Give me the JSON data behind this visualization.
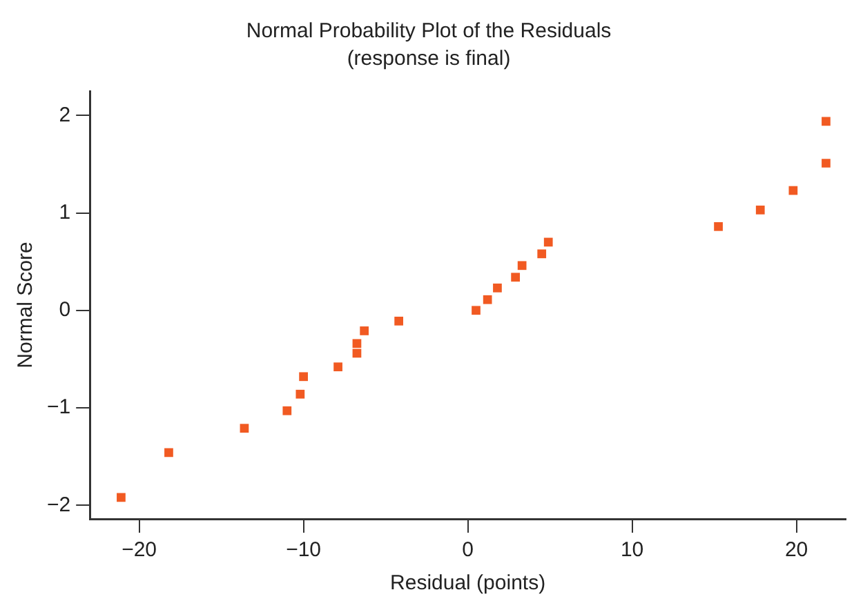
{
  "chart_data": {
    "type": "scatter",
    "title": "Normal Probability Plot of the Residuals",
    "subtitle": "(response is final)",
    "xlabel": "Residual (points)",
    "ylabel": "Normal Score",
    "x": [
      -21.1,
      -18.2,
      -13.6,
      -11.0,
      -10.2,
      -10.0,
      -7.9,
      -6.75,
      -6.75,
      -6.3,
      -4.2,
      0.5,
      1.2,
      1.8,
      2.9,
      3.3,
      4.5,
      4.9,
      15.25,
      17.8,
      19.8,
      21.8,
      21.8
    ],
    "series": [
      {
        "color": "#f15a22",
        "values": [
          -1.92,
          -1.46,
          -1.21,
          -1.03,
          -0.86,
          -0.68,
          -0.58,
          -0.44,
          -0.34,
          -0.21,
          -0.11,
          0.0,
          0.11,
          0.23,
          0.34,
          0.46,
          0.58,
          0.7,
          0.86,
          1.03,
          1.23,
          1.51,
          1.94
        ]
      }
    ],
    "xlim": [
      -23,
      23
    ],
    "ylim": [
      -2.14,
      2.25
    ],
    "xticks": [
      {
        "value": -20,
        "label": "−20"
      },
      {
        "value": -10,
        "label": "−10"
      },
      0,
      10,
      20
    ],
    "yticks": [
      {
        "value": -2,
        "label": "−2"
      },
      {
        "value": -1,
        "label": "−1"
      },
      0,
      1,
      2
    ],
    "marker": "square",
    "grid": false,
    "legend": false
  }
}
